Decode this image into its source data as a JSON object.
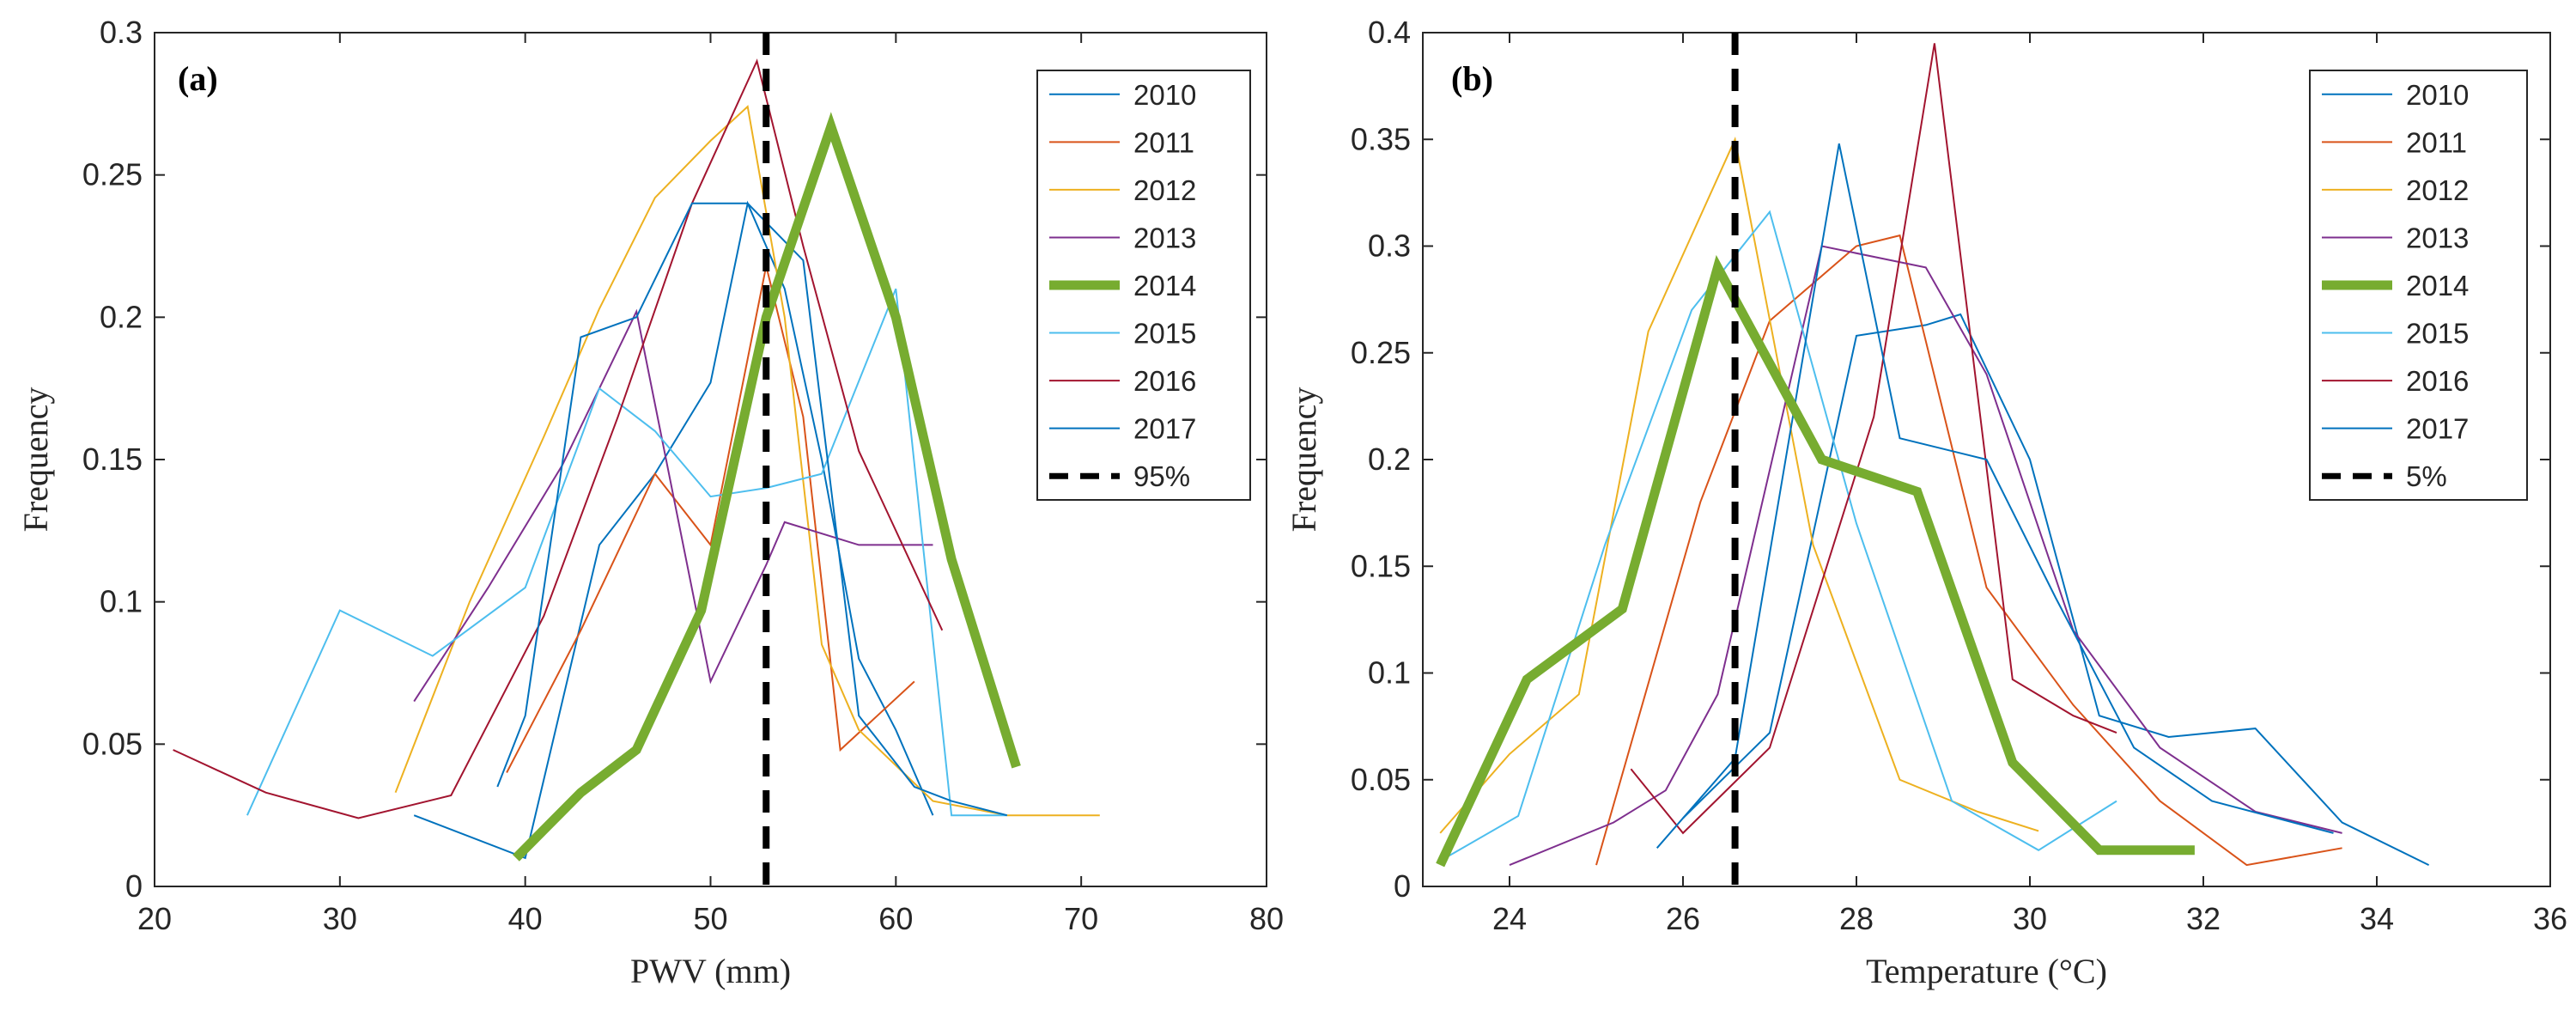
{
  "chart_data": [
    {
      "type": "line",
      "panel_label": "(a)",
      "xlabel": "PWV (mm)",
      "ylabel": "Frequency",
      "xlim": [
        20,
        80
      ],
      "ylim": [
        0,
        0.3
      ],
      "xticks": [
        "20",
        "30",
        "40",
        "50",
        "60",
        "70",
        "80"
      ],
      "yticks": [
        "0",
        "0.05",
        "0.1",
        "0.15",
        "0.2",
        "0.25",
        "0.3"
      ],
      "legend_position": "top-right",
      "series": [
        {
          "name": "2010",
          "color": "#0072BD",
          "width": 2,
          "x": [
            34,
            40,
            44,
            47,
            50,
            52,
            54,
            56,
            58,
            60,
            62
          ],
          "y": [
            0.025,
            0.01,
            0.12,
            0.145,
            0.177,
            0.24,
            0.21,
            0.15,
            0.08,
            0.055,
            0.025
          ]
        },
        {
          "name": "2011",
          "color": "#D95319",
          "width": 2,
          "x": [
            39,
            43,
            47,
            50,
            53,
            55,
            57,
            59,
            61
          ],
          "y": [
            0.04,
            0.09,
            0.145,
            0.12,
            0.218,
            0.165,
            0.048,
            0.06,
            0.072
          ]
        },
        {
          "name": "2012",
          "color": "#EDB120",
          "width": 2,
          "x": [
            33,
            37,
            41,
            44,
            47,
            50,
            52,
            54,
            56,
            58,
            62,
            66,
            71
          ],
          "y": [
            0.033,
            0.1,
            0.158,
            0.203,
            0.242,
            0.262,
            0.274,
            0.2,
            0.085,
            0.055,
            0.03,
            0.025,
            0.025
          ]
        },
        {
          "name": "2013",
          "color": "#7E2F8E",
          "width": 2,
          "x": [
            34,
            38,
            42,
            46,
            50,
            53,
            54,
            58,
            62
          ],
          "y": [
            0.065,
            0.105,
            0.148,
            0.202,
            0.072,
            0.113,
            0.128,
            0.12,
            0.12
          ]
        },
        {
          "name": "2014",
          "color": "#77AC30",
          "width": 11,
          "x": [
            39.5,
            43,
            46,
            49.5,
            53,
            56.5,
            60,
            63,
            66.5
          ],
          "y": [
            0.01,
            0.033,
            0.048,
            0.097,
            0.2,
            0.267,
            0.2,
            0.115,
            0.042
          ]
        },
        {
          "name": "2015",
          "color": "#4DBEEE",
          "width": 2,
          "x": [
            25,
            30,
            35,
            40,
            44,
            47,
            50,
            53,
            56,
            60,
            63,
            66
          ],
          "y": [
            0.025,
            0.097,
            0.081,
            0.105,
            0.175,
            0.16,
            0.137,
            0.14,
            0.145,
            0.21,
            0.025,
            0.025
          ]
        },
        {
          "name": "2016",
          "color": "#A2142F",
          "width": 2,
          "x": [
            21,
            26,
            31,
            36,
            41,
            45,
            49,
            52.5,
            55,
            58,
            62.5
          ],
          "y": [
            0.048,
            0.033,
            0.024,
            0.032,
            0.095,
            0.165,
            0.24,
            0.29,
            0.225,
            0.153,
            0.09
          ]
        },
        {
          "name": "2017",
          "color": "#0072BD",
          "width": 2,
          "x": [
            38.5,
            40,
            43,
            46,
            49,
            52,
            55,
            58,
            61,
            63,
            66
          ],
          "y": [
            0.035,
            0.06,
            0.193,
            0.2,
            0.24,
            0.24,
            0.22,
            0.06,
            0.035,
            0.03,
            0.025
          ]
        }
      ],
      "reference_line": {
        "name": "95%",
        "x": 53
      }
    },
    {
      "type": "line",
      "panel_label": "(b)",
      "xlabel": "Temperature (°C)",
      "ylabel": "Frequency",
      "xlim": [
        23,
        36
      ],
      "ylim": [
        0,
        0.4
      ],
      "xticks": [
        "24",
        "26",
        "28",
        "30",
        "32",
        "34",
        "36"
      ],
      "yticks": [
        "0",
        "0.05",
        "0.1",
        "0.15",
        "0.2",
        "0.25",
        "0.3",
        "0.35",
        "0.4"
      ],
      "legend_position": "top-right",
      "series": [
        {
          "name": "2010",
          "color": "#0072BD",
          "width": 2,
          "x": [
            26,
            27,
            28,
            28.8,
            29.2,
            30,
            30.8,
            31.6,
            32.6,
            33.6,
            34.6
          ],
          "y": [
            0.032,
            0.072,
            0.258,
            0.263,
            0.268,
            0.2,
            0.08,
            0.07,
            0.074,
            0.03,
            0.01
          ]
        },
        {
          "name": "2011",
          "color": "#D95319",
          "width": 2,
          "x": [
            25,
            26.2,
            27,
            28,
            28.5,
            29.5,
            30.5,
            31.5,
            32.5,
            33.6
          ],
          "y": [
            0.01,
            0.18,
            0.265,
            0.3,
            0.305,
            0.14,
            0.085,
            0.04,
            0.01,
            0.018
          ]
        },
        {
          "name": "2012",
          "color": "#EDB120",
          "width": 2,
          "x": [
            23.2,
            24,
            24.8,
            25.6,
            26.6,
            27.5,
            28.5,
            29.4,
            30.1
          ],
          "y": [
            0.025,
            0.062,
            0.09,
            0.26,
            0.35,
            0.16,
            0.05,
            0.035,
            0.026
          ]
        },
        {
          "name": "2013",
          "color": "#7E2F8E",
          "width": 2,
          "x": [
            24,
            25.2,
            25.8,
            26.4,
            26.8,
            27.6,
            28.8,
            29.5,
            30.5,
            31.5,
            32.6,
            33.6
          ],
          "y": [
            0.01,
            0.03,
            0.045,
            0.09,
            0.16,
            0.3,
            0.29,
            0.24,
            0.12,
            0.065,
            0.035,
            0.025
          ]
        },
        {
          "name": "2014",
          "color": "#77AC30",
          "width": 11,
          "x": [
            23.2,
            24.2,
            25.3,
            26.4,
            27.6,
            28.7,
            29.8,
            30.8,
            31.9
          ],
          "y": [
            0.01,
            0.097,
            0.13,
            0.29,
            0.2,
            0.185,
            0.058,
            0.017,
            0.017
          ]
        },
        {
          "name": "2015",
          "color": "#4DBEEE",
          "width": 2,
          "x": [
            23.2,
            24.1,
            25.1,
            26.1,
            27,
            28,
            29.1,
            30.1,
            31
          ],
          "y": [
            0.012,
            0.033,
            0.16,
            0.27,
            0.316,
            0.17,
            0.04,
            0.017,
            0.04
          ]
        },
        {
          "name": "2016",
          "color": "#A2142F",
          "width": 2,
          "x": [
            25.4,
            26,
            27,
            28.2,
            28.9,
            29.8,
            30.5,
            31
          ],
          "y": [
            0.055,
            0.025,
            0.065,
            0.22,
            0.395,
            0.097,
            0.08,
            0.072
          ]
        },
        {
          "name": "2017",
          "color": "#0072BD",
          "width": 2,
          "x": [
            25.7,
            26.6,
            27.8,
            28.5,
            29.5,
            30.3,
            31.2,
            32.1,
            33.5
          ],
          "y": [
            0.018,
            0.06,
            0.348,
            0.21,
            0.2,
            0.135,
            0.065,
            0.04,
            0.025
          ]
        }
      ],
      "reference_line": {
        "name": "5%",
        "x": 26.6
      }
    }
  ]
}
